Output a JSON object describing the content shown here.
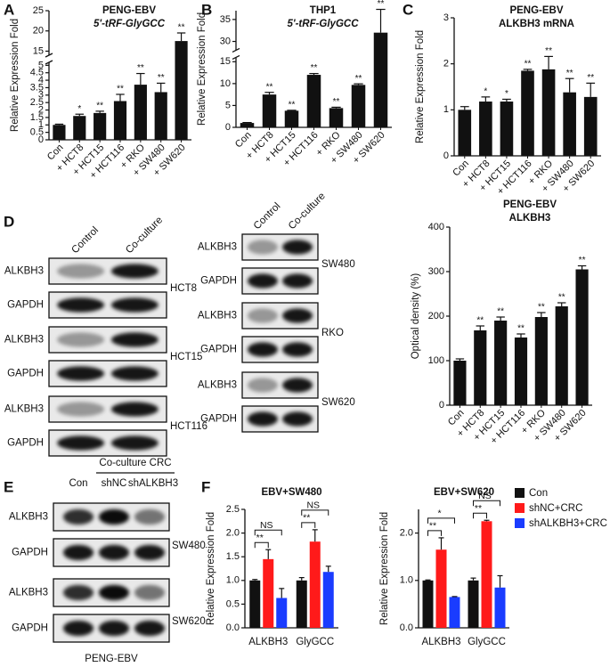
{
  "panel_labels": [
    "A",
    "B",
    "C",
    "D",
    "E",
    "F"
  ],
  "chart_data": [
    {
      "type": "bar",
      "title": "PENG-EBV",
      "subtitle": "5'-tRF-GlyGCC",
      "ylabel": "Relative Expression Fold",
      "categories": [
        "Con",
        "+ HCT8",
        "+ HCT15",
        "+ HCT116",
        "+ RKO",
        "+ SW480",
        "+ SW620"
      ],
      "values": [
        1,
        1.6,
        1.8,
        2.6,
        3.7,
        3.2,
        17.5
      ],
      "errors": [
        0.05,
        0.12,
        0.12,
        0.45,
        0.75,
        0.6,
        2.0
      ],
      "annotations": [
        null,
        "*",
        "**",
        "**",
        "**",
        "**",
        "**"
      ],
      "color": "#111111",
      "ylim": [
        0,
        25
      ],
      "ybreak": [
        5.2,
        14
      ],
      "yticks": [
        0,
        0.5,
        1,
        1.5,
        2,
        2.5,
        3,
        3.5,
        4,
        4.5,
        5,
        15,
        20,
        25
      ]
    },
    {
      "type": "bar",
      "title": "THP1",
      "subtitle": "5'-tRF-GlyGCC",
      "ylabel": "Relative Expression Fold",
      "categories": [
        "Con",
        "+ HCT8",
        "+ HCT15",
        "+ HCT116",
        "+ RKO",
        "+ SW480",
        "+ SW620"
      ],
      "values": [
        1,
        7.5,
        3.8,
        12,
        4.4,
        9.7,
        32
      ],
      "errors": [
        0.1,
        0.5,
        0.1,
        0.3,
        0.2,
        0.25,
        5.3
      ],
      "annotations": [
        null,
        "**",
        "**",
        "**",
        "**",
        "**",
        "**"
      ],
      "color": "#111111",
      "ylim": [
        0,
        37
      ],
      "ybreak": [
        16,
        28
      ],
      "yticks": [
        0,
        5,
        10,
        15,
        30,
        35
      ]
    },
    {
      "type": "bar",
      "title": "PENG-EBV",
      "subtitle": "ALKBH3 mRNA",
      "ylabel": "Relative Expression Fold",
      "categories": [
        "Con",
        "+ HCT8",
        "+ HCT15",
        "+ HCT116",
        "+ RKO",
        "+ SW480",
        "+ SW620"
      ],
      "values": [
        1,
        1.18,
        1.18,
        1.85,
        1.88,
        1.38,
        1.28
      ],
      "errors": [
        0.07,
        0.1,
        0.05,
        0.03,
        0.28,
        0.3,
        0.3
      ],
      "annotations": [
        null,
        "*",
        "*",
        "**",
        "**",
        "**",
        "**"
      ],
      "color": "#111111",
      "ylim": [
        0,
        3
      ],
      "yticks": [
        0,
        1,
        2,
        3
      ]
    },
    {
      "type": "bar",
      "title": "PENG-EBV",
      "subtitle": "ALKBH3",
      "ylabel": "Optical density (%)",
      "categories": [
        "Con",
        "+ HCT8",
        "+ HCT15",
        "+ HCT116",
        "+ RKO",
        "+ SW480",
        "+ SW620"
      ],
      "values": [
        100,
        168,
        190,
        152,
        198,
        222,
        305
      ],
      "errors": [
        4,
        10,
        8,
        8,
        10,
        8,
        8
      ],
      "annotations": [
        null,
        "**",
        "**",
        "**",
        "**",
        "**",
        "**"
      ],
      "color": "#111111",
      "ylim": [
        0,
        400
      ],
      "yticks": [
        0,
        100,
        200,
        300,
        400
      ]
    },
    {
      "type": "grouped_bar",
      "title": "EBV+SW480",
      "ylabel": "Relative Expression Fold",
      "categories": [
        "ALKBH3",
        "GlyGCC"
      ],
      "series": [
        {
          "color": "#111111",
          "values": [
            1.0,
            1.0
          ],
          "errors": [
            0.02,
            0.06
          ]
        },
        {
          "color": "#ff1a1a",
          "values": [
            1.45,
            1.82
          ],
          "errors": [
            0.2,
            0.25
          ]
        },
        {
          "color": "#1a3cff",
          "values": [
            0.63,
            1.18
          ],
          "errors": [
            0.2,
            0.12
          ]
        }
      ],
      "brackets": [
        {
          "category": 0,
          "from": 0,
          "to": 1,
          "label": "**"
        },
        {
          "category": 0,
          "from": 0,
          "to": 2,
          "label": "NS"
        },
        {
          "category": 1,
          "from": 0,
          "to": 1,
          "label": "**"
        },
        {
          "category": 1,
          "from": 0,
          "to": 2,
          "label": "NS"
        }
      ],
      "ylim": [
        0,
        2.5
      ],
      "yticks": [
        {
          "value": 0,
          "label": "0.0"
        },
        0.5,
        {
          "value": 1,
          "label": "1.0"
        },
        1.5,
        {
          "value": 2,
          "label": "2.0"
        },
        2.5
      ]
    },
    {
      "type": "grouped_bar",
      "title": "EBV+SW620",
      "ylabel": "Relative Expression Fold",
      "categories": [
        "ALKBH3",
        "GlyGCC"
      ],
      "series": [
        {
          "name": "Con",
          "color": "#111111",
          "values": [
            1.0,
            1.0
          ],
          "errors": [
            0.01,
            0.05
          ]
        },
        {
          "name": "shNC+CRC",
          "color": "#ff1a1a",
          "values": [
            1.65,
            2.25
          ],
          "errors": [
            0.25,
            0.02
          ]
        },
        {
          "name": "shALKBH3+CRC",
          "color": "#1a3cff",
          "values": [
            0.65,
            0.85
          ],
          "errors": [
            0.01,
            0.25
          ]
        }
      ],
      "brackets": [
        {
          "category": 0,
          "from": 0,
          "to": 1,
          "label": "**"
        },
        {
          "category": 0,
          "from": 0,
          "to": 2,
          "label": "*"
        },
        {
          "category": 1,
          "from": 0,
          "to": 1,
          "label": "**"
        },
        {
          "category": 1,
          "from": 0,
          "to": 2,
          "label": "NS"
        }
      ],
      "legend": "right",
      "ylim": [
        0,
        2.5
      ],
      "yticks": [
        {
          "value": 0,
          "label": "0.0"
        },
        {
          "value": 1,
          "label": "1.0"
        },
        {
          "value": 2,
          "label": "2.0"
        }
      ]
    }
  ],
  "blots_d": {
    "columns": [
      {
        "headers": [
          "Control",
          "Co-culture"
        ],
        "groups": [
          {
            "cell": "HCT8",
            "rows": [
              "ALKBH3",
              "GAPDH"
            ]
          },
          {
            "cell": "HCT15",
            "rows": [
              "ALKBH3",
              "GAPDH"
            ]
          },
          {
            "cell": "HCT116",
            "rows": [
              "ALKBH3",
              "GAPDH"
            ]
          }
        ]
      },
      {
        "headers": [
          "Control",
          "Co-culture"
        ],
        "groups": [
          {
            "cell": "SW480",
            "rows": [
              "ALKBH3",
              "GAPDH"
            ]
          },
          {
            "cell": "RKO",
            "rows": [
              "ALKBH3",
              "GAPDH"
            ]
          },
          {
            "cell": "SW620",
            "rows": [
              "ALKBH3",
              "GAPDH"
            ]
          }
        ]
      }
    ]
  },
  "blot_e": {
    "header": "Co-culture CRC",
    "lanes": [
      "Con",
      "shNC",
      "shALKBH3"
    ],
    "groups": [
      {
        "cell": "SW480",
        "rows": [
          "ALKBH3",
          "GAPDH"
        ]
      },
      {
        "cell": "SW620",
        "rows": [
          "ALKBH3",
          "GAPDH"
        ]
      }
    ],
    "footer": "PENG-EBV"
  }
}
